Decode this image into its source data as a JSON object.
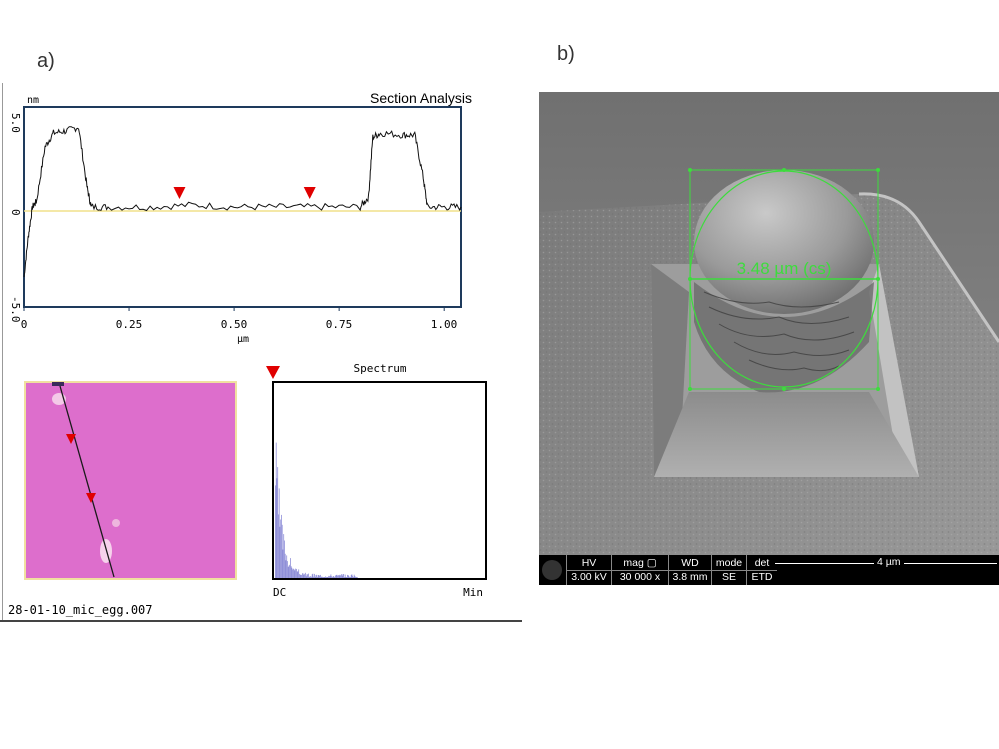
{
  "panel_a": {
    "label": "a)",
    "profile": {
      "title": "Section Analysis",
      "y_unit": "nm",
      "x_unit": "µm",
      "y_ticks": [
        "5.0",
        "0",
        "-5.0"
      ],
      "x_ticks": [
        "0",
        "0.25",
        "0.50",
        "0.75",
        "1.00"
      ],
      "marker_color": "#e00000",
      "markers_x": [
        0.37,
        0.68
      ],
      "chart_data": {
        "type": "line",
        "x": [
          0.0,
          0.01,
          0.02,
          0.03,
          0.05,
          0.07,
          0.1,
          0.13,
          0.15,
          0.16,
          0.2,
          0.3,
          0.4,
          0.5,
          0.6,
          0.7,
          0.8,
          0.82,
          0.83,
          0.85,
          0.9,
          0.93,
          0.95,
          0.96,
          1.0,
          1.04
        ],
        "y": [
          -3.5,
          -1.5,
          0.0,
          0.3,
          3.0,
          3.7,
          3.8,
          4.0,
          1.0,
          0.0,
          0.0,
          0.0,
          0.1,
          0.0,
          0.0,
          0.0,
          0.0,
          0.5,
          3.5,
          3.7,
          3.6,
          3.6,
          1.5,
          0.0,
          0.0,
          0.0
        ],
        "xlim": [
          0,
          1.04
        ],
        "ylim": [
          -5.0,
          5.0
        ]
      }
    },
    "image": {
      "colors": {
        "bg": "#dd6ecc",
        "border": "#f0e0a0",
        "line": "#1a1a1a"
      }
    },
    "spectrum": {
      "title": "Spectrum",
      "x_left": "DC",
      "x_right": "Min"
    },
    "filename": "28-01-10_mic_egg.007"
  },
  "panel_b": {
    "label": "b)",
    "measurement": "3.48 µm (cs)",
    "measure_color": "#3ddc3d",
    "info_bar": {
      "columns": [
        {
          "head": "HV",
          "value": "3.00 kV"
        },
        {
          "head": "mag ▢",
          "value": "30 000 x"
        },
        {
          "head": "WD",
          "value": "3.8 mm"
        },
        {
          "head": "mode",
          "value": "SE"
        },
        {
          "head": "det",
          "value": "ETD"
        }
      ],
      "scale_label": "4 µm"
    }
  }
}
